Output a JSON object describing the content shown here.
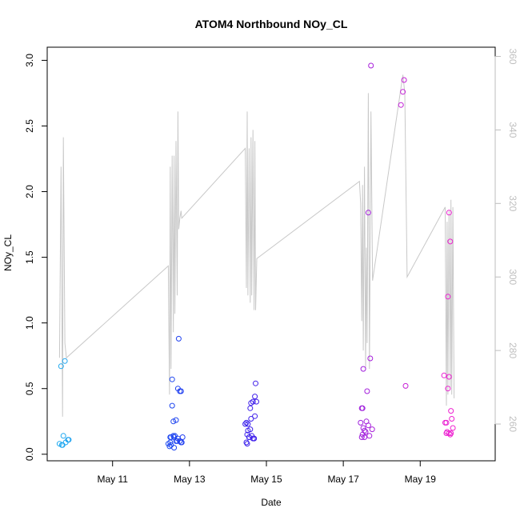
{
  "chart_data": {
    "type": "scatter",
    "title": "ATOM4 Northbound NOy_CL",
    "xlabel": "Date",
    "ylabel": "NOy_CL",
    "ylabel_right": "",
    "xlim": [
      9.3,
      20.95
    ],
    "ylim": [
      -0.05,
      3.1
    ],
    "ylim_right": [
      250.0,
      362.5
    ],
    "x_ticks": [
      {
        "value": 11,
        "label": "May 11"
      },
      {
        "value": 13,
        "label": "May 13"
      },
      {
        "value": 15,
        "label": "May 15"
      },
      {
        "value": 17,
        "label": "May 17"
      },
      {
        "value": 19,
        "label": "May 19"
      }
    ],
    "y_ticks": [
      {
        "value": 0.0,
        "label": "0.0"
      },
      {
        "value": 0.5,
        "label": "0.5"
      },
      {
        "value": 1.0,
        "label": "1.0"
      },
      {
        "value": 1.5,
        "label": "1.5"
      },
      {
        "value": 2.0,
        "label": "2.0"
      },
      {
        "value": 2.5,
        "label": "2.5"
      },
      {
        "value": 3.0,
        "label": "3.0"
      }
    ],
    "y_ticks_right": [
      {
        "value": 260,
        "label": "260"
      },
      {
        "value": 280,
        "label": "280"
      },
      {
        "value": 300,
        "label": "300"
      },
      {
        "value": 320,
        "label": "320"
      },
      {
        "value": 340,
        "label": "340"
      },
      {
        "value": 360,
        "label": "360"
      }
    ],
    "grid": false,
    "colors": {
      "line": "#c8c8c8",
      "point_start": "#1eaaf0",
      "point_mid": "#2020f0",
      "point_end": "#f020d0",
      "right_axis": "#bebebe"
    },
    "series": [
      {
        "type": "scatter",
        "axis": "left",
        "x": [
          9.62,
          9.68,
          9.72,
          9.76,
          9.84,
          9.86,
          9.7,
          9.66,
          9.78,
          12.45,
          12.48,
          12.5,
          12.52,
          12.55,
          12.58,
          12.6,
          12.62,
          12.65,
          12.68,
          12.7,
          12.72,
          12.75,
          12.78,
          12.8,
          12.5,
          12.55,
          12.6,
          12.65,
          12.7,
          12.52,
          12.58,
          12.75,
          12.78,
          12.82,
          14.45,
          14.48,
          14.5,
          14.52,
          14.55,
          14.58,
          14.6,
          14.62,
          14.65,
          14.68,
          14.7,
          14.72,
          14.5,
          14.55,
          14.6,
          14.65,
          14.7,
          14.52,
          14.58,
          14.68,
          14.74,
          14.48,
          17.45,
          17.48,
          17.5,
          17.52,
          17.55,
          17.58,
          17.6,
          17.62,
          17.65,
          17.68,
          17.7,
          17.75,
          17.5,
          17.55,
          17.65,
          17.72,
          17.48,
          17.52,
          18.5,
          18.55,
          18.58,
          18.62,
          19.62,
          19.65,
          19.68,
          19.7,
          19.72,
          19.75,
          19.78,
          19.8,
          19.68,
          19.72,
          19.75,
          19.78,
          19.8,
          19.82,
          19.85,
          19.75
        ],
        "y": [
          0.08,
          0.07,
          0.14,
          0.71,
          0.11,
          0.11,
          0.07,
          0.67,
          0.09,
          0.08,
          0.06,
          0.13,
          0.07,
          0.57,
          0.25,
          0.13,
          0.14,
          0.26,
          0.1,
          0.5,
          0.88,
          0.48,
          0.09,
          0.09,
          0.09,
          0.37,
          0.05,
          0.1,
          0.12,
          0.13,
          0.14,
          0.1,
          0.48,
          0.13,
          0.23,
          0.09,
          0.08,
          0.18,
          0.13,
          0.35,
          0.39,
          0.14,
          0.4,
          0.12,
          0.29,
          0.54,
          0.15,
          0.13,
          0.27,
          0.12,
          0.44,
          0.23,
          0.19,
          0.12,
          0.4,
          0.24,
          0.24,
          0.35,
          0.15,
          0.65,
          0.13,
          0.17,
          0.25,
          0.48,
          0.22,
          0.14,
          0.73,
          0.19,
          0.35,
          0.18,
          1.84,
          2.96,
          0.13,
          0.2,
          2.66,
          2.76,
          2.85,
          0.52,
          0.6,
          0.24,
          0.24,
          0.17,
          1.2,
          1.84,
          0.15,
          0.16,
          0.16,
          0.5,
          0.59,
          1.62,
          0.33,
          0.27,
          0.2,
          0.16
        ]
      },
      {
        "type": "line",
        "axis": "right",
        "x": [
          9.62,
          9.66,
          9.7,
          9.72,
          9.76,
          9.8,
          12.45,
          12.48,
          12.5,
          12.52,
          12.55,
          12.58,
          12.6,
          12.62,
          12.65,
          12.68,
          12.7,
          12.72,
          12.75,
          12.78,
          12.8,
          14.45,
          14.48,
          14.5,
          14.52,
          14.55,
          14.58,
          14.6,
          14.62,
          14.65,
          14.68,
          14.7,
          14.72,
          14.75,
          17.42,
          17.45,
          17.48,
          17.5,
          17.52,
          17.55,
          17.58,
          17.6,
          17.62,
          17.65,
          17.68,
          17.72,
          17.76,
          18.55,
          18.6,
          18.66,
          19.65,
          19.68,
          19.7,
          19.72,
          19.75,
          19.78,
          19.8,
          19.82,
          19.85,
          19.88
        ],
        "y": [
          278,
          330,
          262,
          338,
          282,
          278,
          303,
          268,
          330,
          275,
          333,
          285,
          333,
          290,
          337,
          295,
          345,
          313,
          316,
          318,
          316,
          335,
          297,
          345,
          295,
          335,
          293,
          338,
          295,
          340,
          291,
          337,
          291,
          305,
          326,
          320,
          288,
          325,
          280,
          330,
          275,
          308,
          282,
          350,
          275,
          345,
          299,
          355,
          350,
          300,
          319,
          265,
          315,
          268,
          318,
          270,
          321,
          268,
          319,
          267
        ]
      }
    ]
  }
}
